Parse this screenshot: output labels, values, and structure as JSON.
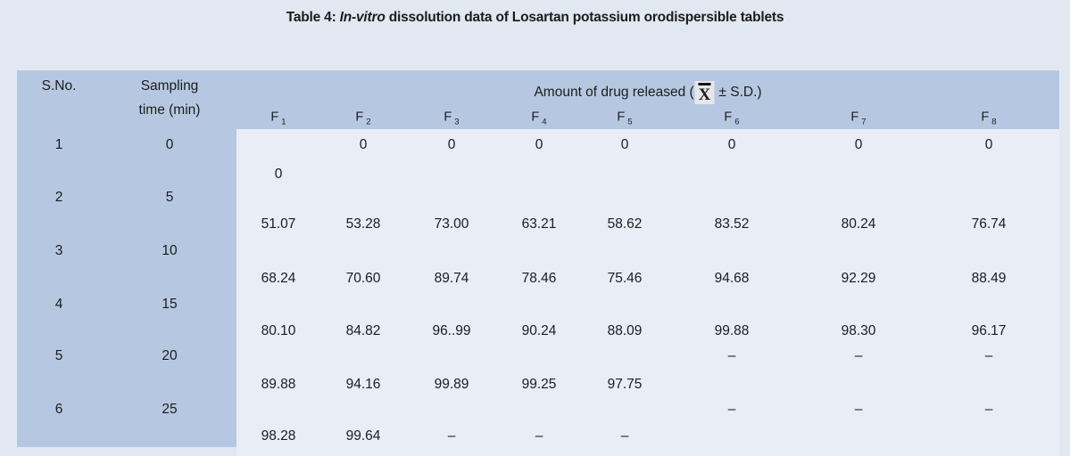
{
  "title": {
    "prefix": "Table 4: ",
    "italic": "In-vitro",
    "suffix": " dissolution data of Losartan potassium orodispersible tablets"
  },
  "table": {
    "header": {
      "sno": "S.No.",
      "sampling_line1": "Sampling",
      "sampling_line2": "time (min)",
      "amount_prefix": "Amount of drug released (",
      "xbar_letter": "X",
      "amount_suffix": "± S.D.)"
    },
    "f_columns": [
      {
        "base": "F",
        "sub": "1"
      },
      {
        "base": "F",
        "sub": "2"
      },
      {
        "base": "F",
        "sub": "3"
      },
      {
        "base": "F",
        "sub": "4"
      },
      {
        "base": "F",
        "sub": "5"
      },
      {
        "base": "F",
        "sub": "6"
      },
      {
        "base": "F",
        "sub": "7"
      },
      {
        "base": "F",
        "sub": "8"
      }
    ],
    "lines": [
      {
        "sno": "1",
        "time": "0",
        "f2": "0",
        "f3": "0",
        "f4": "0",
        "f5": "0",
        "f6": "0",
        "f7": "0",
        "f8": "0"
      },
      {
        "f1": "0"
      },
      {
        "sno": "2",
        "time": "5"
      },
      {
        "f1": "51.07",
        "f2": "53.28",
        "f3": "73.00",
        "f4": "63.21",
        "f5": "58.62",
        "f6": "83.52",
        "f7": "80.24",
        "f8": "76.74"
      },
      {
        "sno": "3",
        "time": "10"
      },
      {
        "f1": "68.24",
        "f2": "70.60",
        "f3": "89.74",
        "f4": "78.46",
        "f5": "75.46",
        "f6": "94.68",
        "f7": "92.29",
        "f8": "88.49"
      },
      {
        "sno": "4",
        "time": "15"
      },
      {
        "f1": "80.10",
        "f2": "84.82",
        "f3": "96..99",
        "f4": "90.24",
        "f5": "88.09",
        "f6": "99.88",
        "f7": "98.30",
        "f8": "96.17"
      },
      {
        "sno": "5",
        "time": "20",
        "f6": "–",
        "f7": "–",
        "f8": "–"
      },
      {
        "f1": "89.88",
        "f2": "94.16",
        "f3": "99.89",
        "f4": "99.25",
        "f5": "97.75"
      },
      {
        "sno": "6",
        "time": "25",
        "f6": "–",
        "f7": "–",
        "f8": "–"
      },
      {
        "f1": "98.28",
        "f2": "99.64",
        "f3": "–",
        "f4": "–",
        "f5": "–"
      }
    ],
    "colors": {
      "page_bg": "#e2e8f2",
      "panel_blue": "#b6c8e1",
      "data_bg": "#e8edf6",
      "xbar_bg": "#e7e7e7",
      "text": "#1c1c1c"
    }
  }
}
